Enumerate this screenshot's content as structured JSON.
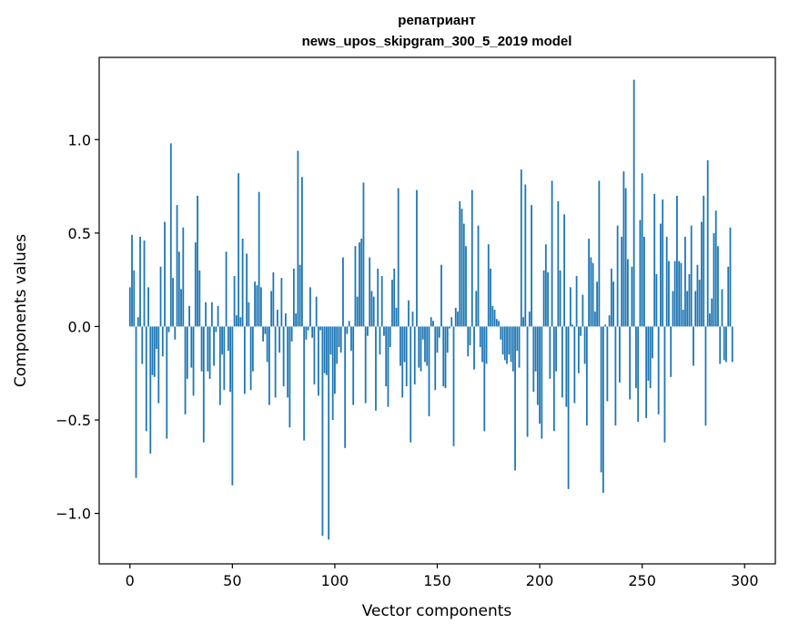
{
  "chart_data": {
    "type": "bar",
    "title": "репатриант",
    "subtitle": "news_upos_skipgram_300_5_2019 model",
    "xlabel": "Vector components",
    "ylabel": "Components values",
    "xlim": [
      -15,
      315
    ],
    "ylim": [
      -1.27,
      1.44
    ],
    "xticks": [
      0,
      50,
      100,
      150,
      200,
      250,
      300
    ],
    "xtick_labels": [
      "0",
      "50",
      "100",
      "150",
      "200",
      "250",
      "300"
    ],
    "yticks": [
      1.0,
      0.5,
      0.0,
      -0.5,
      -1.0
    ],
    "ytick_labels": [
      "1.0",
      "0.5",
      "0.0",
      "−0.5",
      "−1.0"
    ],
    "grid": false,
    "bar_color": "#1f77b4",
    "values": [
      0.21,
      0.49,
      0.3,
      -0.81,
      0.05,
      0.48,
      -0.2,
      0.46,
      -0.56,
      0.21,
      -0.68,
      -0.26,
      -0.27,
      -0.12,
      -0.41,
      0.32,
      -0.16,
      0.56,
      -0.6,
      -0.03,
      0.98,
      0.26,
      -0.07,
      0.65,
      0.4,
      0.2,
      0.53,
      -0.47,
      -0.28,
      0.11,
      -0.22,
      -0.37,
      0.45,
      0.7,
      0.3,
      -0.24,
      -0.62,
      0.13,
      -0.24,
      -0.28,
      0.13,
      -0.21,
      -0.03,
      0.11,
      -0.42,
      -0.15,
      -0.34,
      0.4,
      -0.13,
      -0.35,
      -0.85,
      0.27,
      0.06,
      0.82,
      0.05,
      0.47,
      -0.36,
      0.39,
      0.13,
      -0.34,
      -0.24,
      0.24,
      0.22,
      0.72,
      0.21,
      -0.08,
      -0.04,
      -0.19,
      -0.42,
      0.19,
      0.29,
      -0.38,
      0.09,
      -0.14,
      0.26,
      -0.32,
      0.07,
      -0.38,
      -0.54,
      -0.08,
      0.31,
      0.07,
      0.94,
      0.33,
      0.8,
      -0.61,
      -0.07,
      -0.02,
      0.21,
      -0.06,
      -0.31,
      0.16,
      -0.37,
      -0.02,
      -1.12,
      -0.25,
      -0.26,
      -1.14,
      -0.15,
      -0.5,
      -0.36,
      -0.2,
      -0.11,
      -0.14,
      0.37,
      -0.65,
      -0.04,
      0.03,
      -0.13,
      -0.42,
      0.43,
      0.16,
      0.45,
      0.47,
      0.77,
      -0.41,
      -0.05,
      0.37,
      0.19,
      0.16,
      -0.45,
      0.31,
      -0.15,
      0.27,
      -0.05,
      -0.32,
      -0.43,
      -0.11,
      0.25,
      0.31,
      0.1,
      0.74,
      -0.21,
      -0.38,
      -0.19,
      -0.32,
      0.14,
      -0.62,
      0.08,
      -0.31,
      0.73,
      -0.22,
      -0.24,
      -0.07,
      -0.19,
      -0.21,
      -0.48,
      0.05,
      0.03,
      -0.34,
      -0.14,
      -0.06,
      0.33,
      -0.32,
      -0.33,
      -0.14,
      -0.01,
      0.05,
      -0.64,
      0.1,
      0.08,
      0.67,
      0.63,
      0.55,
      0.43,
      -0.16,
      -0.1,
      0.73,
      -0.23,
      0.19,
      0.54,
      -0.11,
      -0.19,
      -0.56,
      -0.2,
      0.44,
      0.31,
      0.11,
      0.09,
      0.04,
      0.03,
      -0.07,
      -0.15,
      -0.18,
      -0.2,
      -0.15,
      -0.19,
      -0.24,
      -0.77,
      -0.13,
      -0.22,
      0.84,
      0.05,
      0.76,
      -0.59,
      0.08,
      0.65,
      -0.35,
      -0.24,
      -0.42,
      -0.52,
      -0.6,
      0.3,
      0.44,
      0.29,
      -0.28,
      0.78,
      -0.56,
      -0.24,
      0.67,
      0.3,
      -0.38,
      0.6,
      -0.43,
      -0.87,
      0.21,
      0.01,
      -0.41,
      0.27,
      -0.25,
      -0.05,
      0.17,
      -0.2,
      -0.53,
      0.47,
      0.37,
      0.34,
      0.08,
      0.24,
      0.78,
      -0.78,
      -0.89,
      0.01,
      -0.4,
      0.06,
      0.31,
      0.24,
      -0.53,
      0.54,
      -0.3,
      0.48,
      0.83,
      0.74,
      0.36,
      -0.39,
      0.32,
      1.32,
      -0.33,
      -0.51,
      0.57,
      0.82,
      0.48,
      -0.49,
      -0.29,
      -0.33,
      -0.17,
      0.71,
      0.28,
      -0.47,
      0.55,
      0.68,
      -0.62,
      0.48,
      0.35,
      -0.27,
      0.19,
      0.35,
      0.7,
      0.35,
      0.34,
      0.09,
      0.48,
      0.19,
      0.28,
      0.54,
      -0.21,
      0.19,
      0.33,
      0.25,
      0.56,
      0.7,
      -0.53,
      0.89,
      0.07,
      0.15,
      0.5,
      0.62,
      0.43,
      -0.2,
      0.2,
      -0.18,
      -0.19,
      0.32,
      0.53,
      -0.19
    ]
  }
}
